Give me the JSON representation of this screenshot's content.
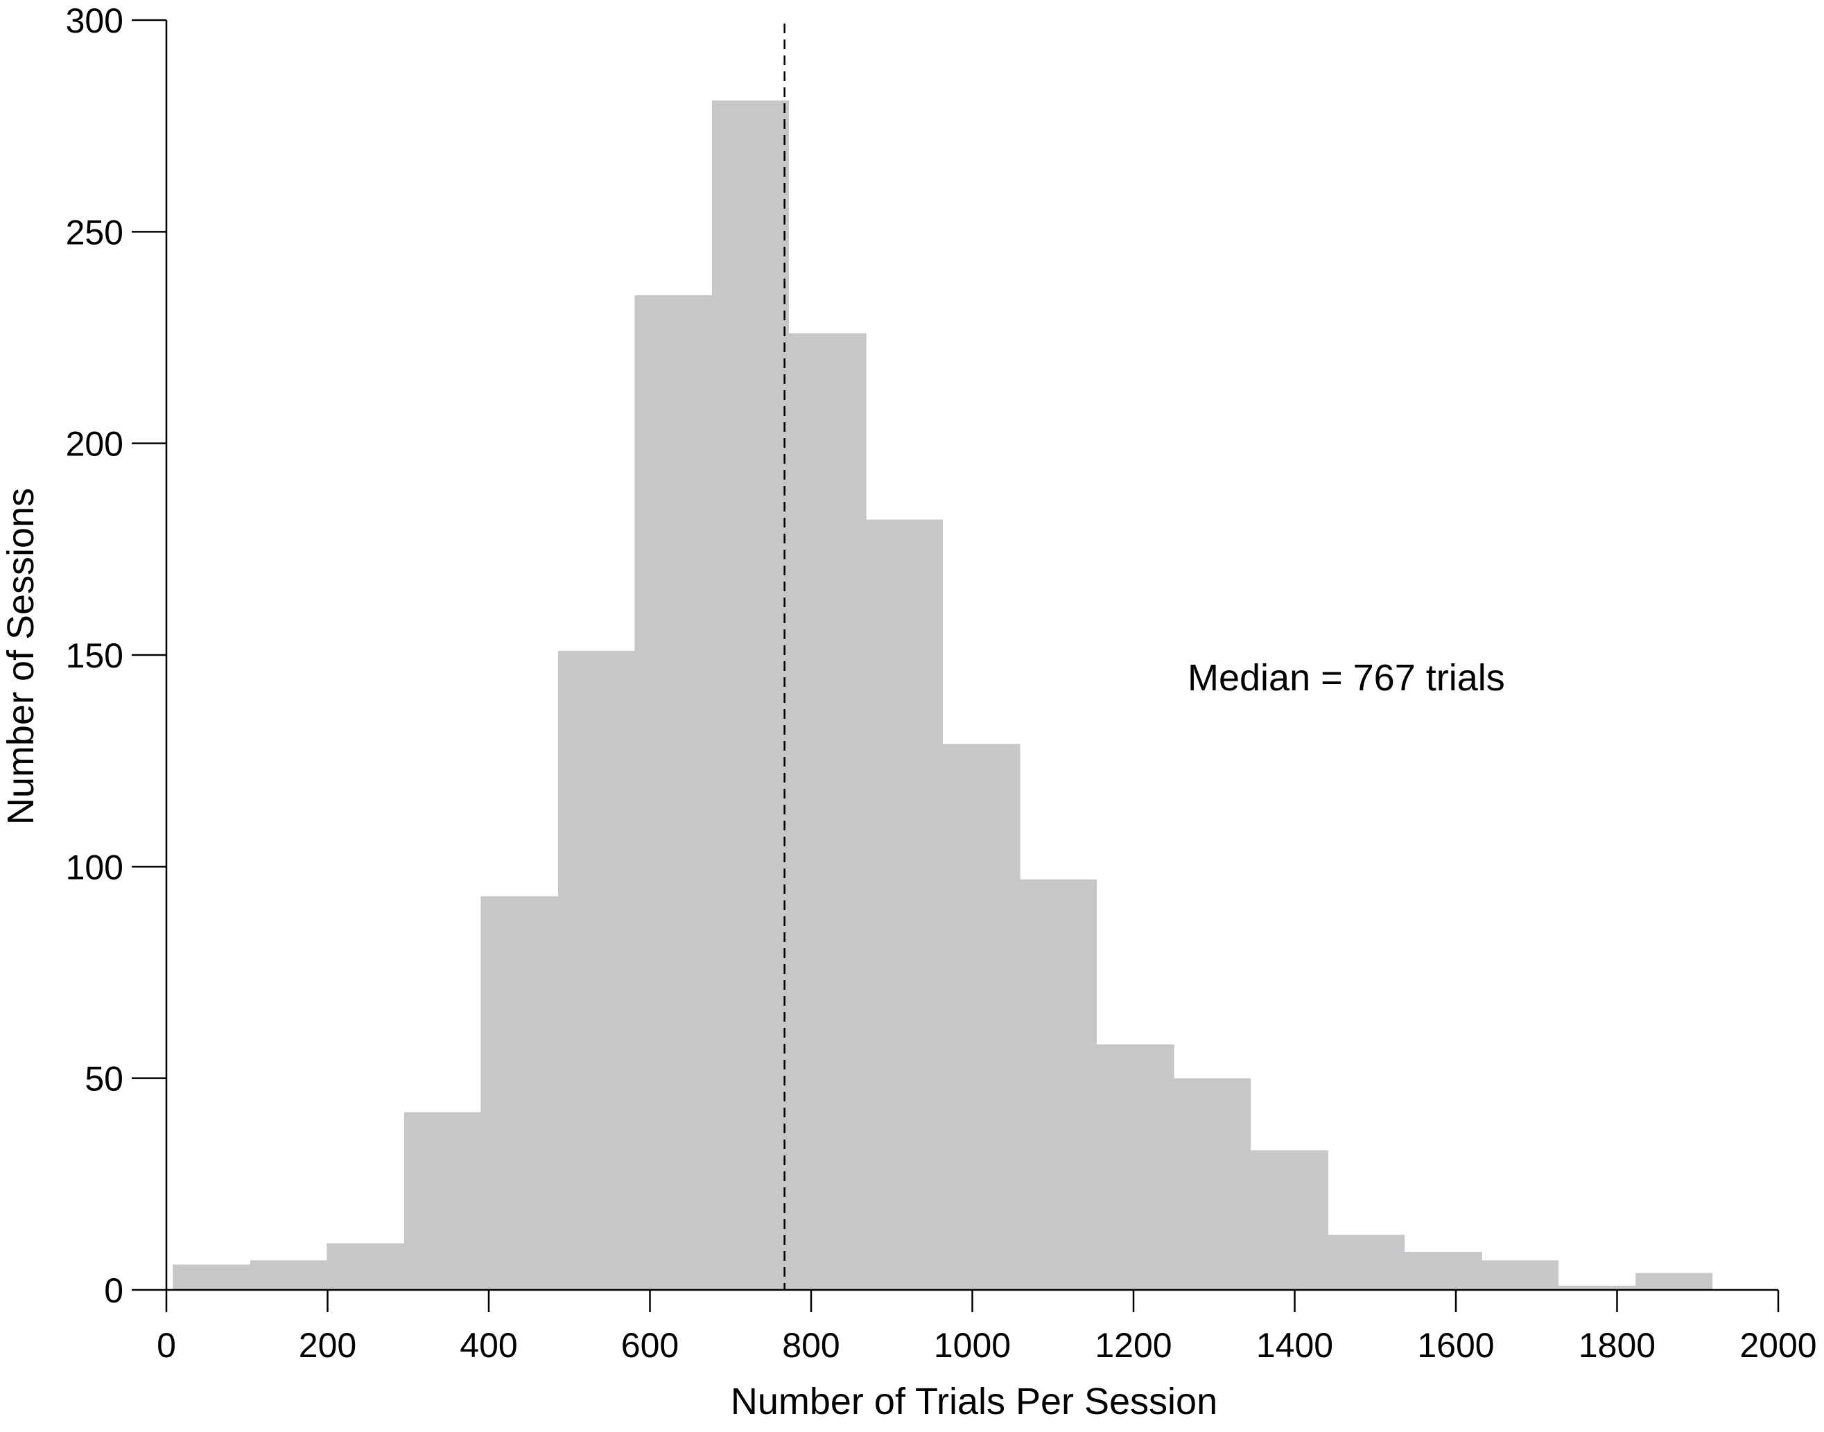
{
  "chart_data": {
    "type": "bar",
    "subtype": "histogram",
    "xlabel": "Number of Trials Per Session",
    "ylabel": "Number of Sessions",
    "xlim": [
      0,
      2000
    ],
    "ylim": [
      0,
      300
    ],
    "xticks": [
      0,
      200,
      400,
      600,
      800,
      1000,
      1200,
      1400,
      1600,
      1800,
      2000
    ],
    "yticks": [
      0,
      50,
      100,
      150,
      200,
      250,
      300
    ],
    "grid": false,
    "bar_color": "#c6c7c9",
    "bins": [
      {
        "start": 8,
        "end": 104,
        "count": 6
      },
      {
        "start": 104,
        "end": 199,
        "count": 7
      },
      {
        "start": 199,
        "end": 295,
        "count": 11
      },
      {
        "start": 295,
        "end": 390,
        "count": 42
      },
      {
        "start": 390,
        "end": 486,
        "count": 93
      },
      {
        "start": 486,
        "end": 581,
        "count": 151
      },
      {
        "start": 581,
        "end": 677,
        "count": 235
      },
      {
        "start": 677,
        "end": 772,
        "count": 281
      },
      {
        "start": 772,
        "end": 868,
        "count": 226
      },
      {
        "start": 868,
        "end": 963,
        "count": 182
      },
      {
        "start": 963,
        "end": 1059,
        "count": 129
      },
      {
        "start": 1059,
        "end": 1154,
        "count": 97
      },
      {
        "start": 1154,
        "end": 1250,
        "count": 58
      },
      {
        "start": 1250,
        "end": 1345,
        "count": 50
      },
      {
        "start": 1345,
        "end": 1441,
        "count": 33
      },
      {
        "start": 1441,
        "end": 1536,
        "count": 13
      },
      {
        "start": 1536,
        "end": 1632,
        "count": 9
      },
      {
        "start": 1632,
        "end": 1727,
        "count": 7
      },
      {
        "start": 1727,
        "end": 1823,
        "count": 1
      },
      {
        "start": 1823,
        "end": 1918,
        "count": 4
      }
    ],
    "median_line": {
      "x": 767,
      "style": "dashed"
    },
    "annotation": "Median = 767 trials"
  }
}
